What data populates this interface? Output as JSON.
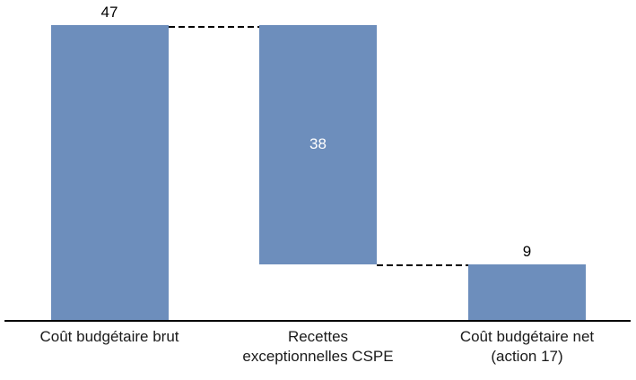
{
  "background_color": "#ffffff",
  "chart_data": {
    "type": "bar",
    "subtype": "waterfall",
    "title": "",
    "xlabel": "",
    "ylabel": "",
    "ylim": [
      0,
      47
    ],
    "grid": false,
    "legend": null,
    "axis_visible": "x-only",
    "bar_color": "#6D8EBC",
    "axis_color": "#000000",
    "connector_style": "dashed",
    "categories": [
      "Coût budgétaire brut",
      "Recettes exceptionnelles CSPE",
      "Coût budgétaire net (action 17)"
    ],
    "bars": [
      {
        "label_text": "Coût budgétaire brut",
        "start": 0,
        "end": 47,
        "value": 47,
        "value_label": "47",
        "value_label_position": "above",
        "value_label_color": "#000000"
      },
      {
        "label_text": "Recettes\nexceptionnelles CSPE",
        "start": 9,
        "end": 47,
        "value": 38,
        "value_label": "38",
        "value_label_position": "inside",
        "value_label_color": "#ffffff"
      },
      {
        "label_text": "Coût budgétaire net\n(action 17)",
        "start": 0,
        "end": 9,
        "value": 9,
        "value_label": "9",
        "value_label_position": "above",
        "value_label_color": "#000000"
      }
    ],
    "connectors": [
      {
        "from_bar": 0,
        "to_bar": 1,
        "level": 47
      },
      {
        "from_bar": 1,
        "to_bar": 2,
        "level": 9
      }
    ]
  }
}
